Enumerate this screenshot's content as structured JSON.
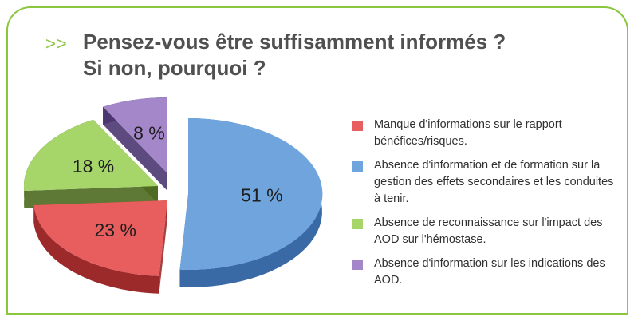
{
  "header": {
    "chevron": ">>",
    "title_line1": "Pensez-vous être suffisamment informés ?",
    "title_line2": "Si non, pourquoi ?"
  },
  "colors": {
    "frame": "#8cc63f",
    "title": "#505050"
  },
  "chart_data": {
    "type": "pie",
    "style": "3d-exploded",
    "legend_position": "right",
    "slices": [
      {
        "label": "Manque d'informations sur le rapport bénéfices/risques.",
        "value": 23,
        "value_label": "23 %",
        "color": "#e85d5d",
        "side_color": "#9c2a2a"
      },
      {
        "label": "Absence d'information et de formation sur la gestion des effets secondaires et les conduites à tenir.",
        "value": 51,
        "value_label": "51 %",
        "color": "#6fa4dc",
        "side_color": "#3a6aa6"
      },
      {
        "label": "Absence de reconnaissance sur l'impact des AOD sur l'hémostase.",
        "value": 18,
        "value_label": "18 %",
        "color": "#a6d66a",
        "side_color": "#4d6a1f"
      },
      {
        "label": "Absence d'information sur les indications des AOD.",
        "value": 8,
        "value_label": "8 %",
        "color": "#a387c9",
        "side_color": "#4b3670"
      }
    ]
  }
}
